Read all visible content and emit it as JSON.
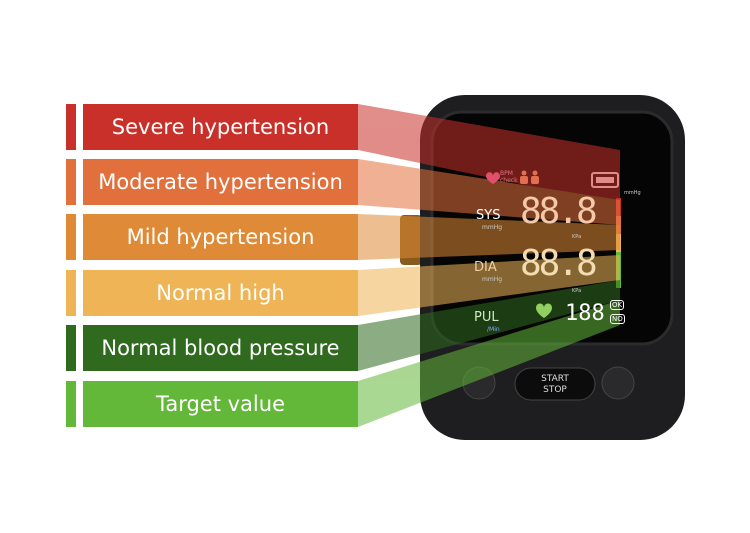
{
  "categories": [
    {
      "label": "Severe hypertension",
      "color": "#c9302a"
    },
    {
      "label": "Moderate hypertension",
      "color": "#e2703c"
    },
    {
      "label": "Mild hypertension",
      "color": "#de8a36"
    },
    {
      "label": "Normal high",
      "color": "#efb456"
    },
    {
      "label": "Normal blood pressure",
      "color": "#2f6a1f"
    },
    {
      "label": "Target value",
      "color": "#63b83a"
    }
  ],
  "display": {
    "bpm_check": "BPM check",
    "sys": "SYS",
    "sys_unit": "mmHg",
    "dia": "DIA",
    "dia_unit": "mmHg",
    "pul": "PUL",
    "pul_unit": "/Min",
    "sys_value": "88.8",
    "dia_value": "88.8",
    "pul_value": "188",
    "kpa": "KPa",
    "mmhg": "mmHg",
    "ok": "OK",
    "no": "NO"
  },
  "buttons": {
    "start": "START",
    "stop": "STOP"
  }
}
